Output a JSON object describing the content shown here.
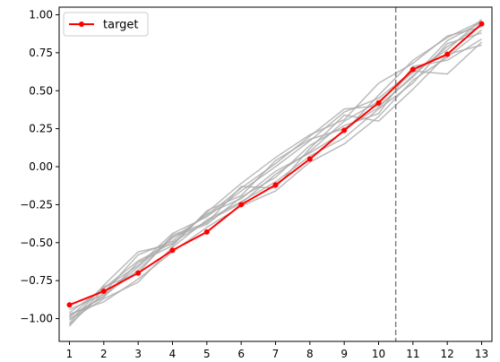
{
  "chart_data": {
    "type": "line",
    "title": "",
    "xlabel": "",
    "ylabel": "",
    "xlim": [
      0.7,
      13.3
    ],
    "ylim": [
      -1.15,
      1.05
    ],
    "x": [
      1,
      2,
      3,
      4,
      5,
      6,
      7,
      8,
      9,
      10,
      11,
      12,
      13
    ],
    "x_ticks": [
      "1",
      "2",
      "3",
      "4",
      "5",
      "6",
      "7",
      "8",
      "9",
      "10",
      "11",
      "12",
      "13"
    ],
    "y_ticks": [
      1.0,
      0.75,
      0.5,
      0.25,
      0.0,
      -0.25,
      -0.5,
      -0.75,
      -1.0
    ],
    "y_tick_labels": [
      "1.00",
      "0.75",
      "0.50",
      "0.25",
      "0.00",
      "−0.25",
      "−0.50",
      "−0.75",
      "−1.00"
    ],
    "vline": {
      "x": 10.5,
      "style": "dashed",
      "color": "#808080"
    },
    "legend": {
      "placement": "upper-left",
      "entries": [
        "target"
      ]
    },
    "grid": false,
    "target": {
      "name": "target",
      "color": "#ff0000",
      "marker": "circle",
      "values": [
        -0.91,
        -0.82,
        -0.7,
        -0.55,
        -0.43,
        -0.25,
        -0.12,
        0.05,
        0.24,
        0.42,
        0.64,
        0.74,
        0.94
      ]
    },
    "samples_color": "#aaaaaa",
    "samples": [
      {
        "values": [
          -1.05,
          -0.8,
          -0.62,
          -0.5,
          -0.36,
          -0.24,
          -0.05,
          0.1,
          0.3,
          0.43,
          0.62,
          0.77,
          0.97
        ]
      },
      {
        "values": [
          -1.0,
          -0.85,
          -0.68,
          -0.47,
          -0.32,
          -0.14,
          0.02,
          0.2,
          0.38,
          0.4,
          0.59,
          0.83,
          0.95
        ]
      },
      {
        "values": [
          -0.97,
          -0.89,
          -0.74,
          -0.56,
          -0.4,
          -0.26,
          -0.16,
          0.03,
          0.15,
          0.33,
          0.57,
          0.72,
          0.9
        ]
      },
      {
        "values": [
          -1.03,
          -0.78,
          -0.56,
          -0.51,
          -0.3,
          -0.11,
          0.06,
          0.21,
          0.31,
          0.55,
          0.68,
          0.86,
          0.92
        ]
      },
      {
        "values": [
          -0.94,
          -0.84,
          -0.66,
          -0.46,
          -0.38,
          -0.2,
          -0.07,
          0.14,
          0.27,
          0.35,
          0.66,
          0.7,
          0.84
        ]
      },
      {
        "values": [
          -1.01,
          -0.87,
          -0.76,
          -0.53,
          -0.35,
          -0.23,
          -0.1,
          0.07,
          0.19,
          0.38,
          0.55,
          0.81,
          0.88
        ]
      },
      {
        "values": [
          -0.96,
          -0.8,
          -0.65,
          -0.44,
          -0.33,
          -0.16,
          0.0,
          0.17,
          0.36,
          0.45,
          0.63,
          0.61,
          0.82
        ]
      },
      {
        "values": [
          -1.04,
          -0.83,
          -0.58,
          -0.49,
          -0.31,
          -0.21,
          -0.03,
          0.09,
          0.23,
          0.47,
          0.7,
          0.85,
          0.96
        ]
      },
      {
        "values": [
          -0.99,
          -0.79,
          -0.7,
          -0.45,
          -0.37,
          -0.13,
          -0.14,
          0.12,
          0.34,
          0.3,
          0.51,
          0.74,
          0.8
        ]
      },
      {
        "values": [
          -0.98,
          -0.86,
          -0.63,
          -0.52,
          -0.29,
          -0.19,
          0.04,
          0.18,
          0.25,
          0.39,
          0.6,
          0.79,
          0.93
        ]
      }
    ]
  }
}
